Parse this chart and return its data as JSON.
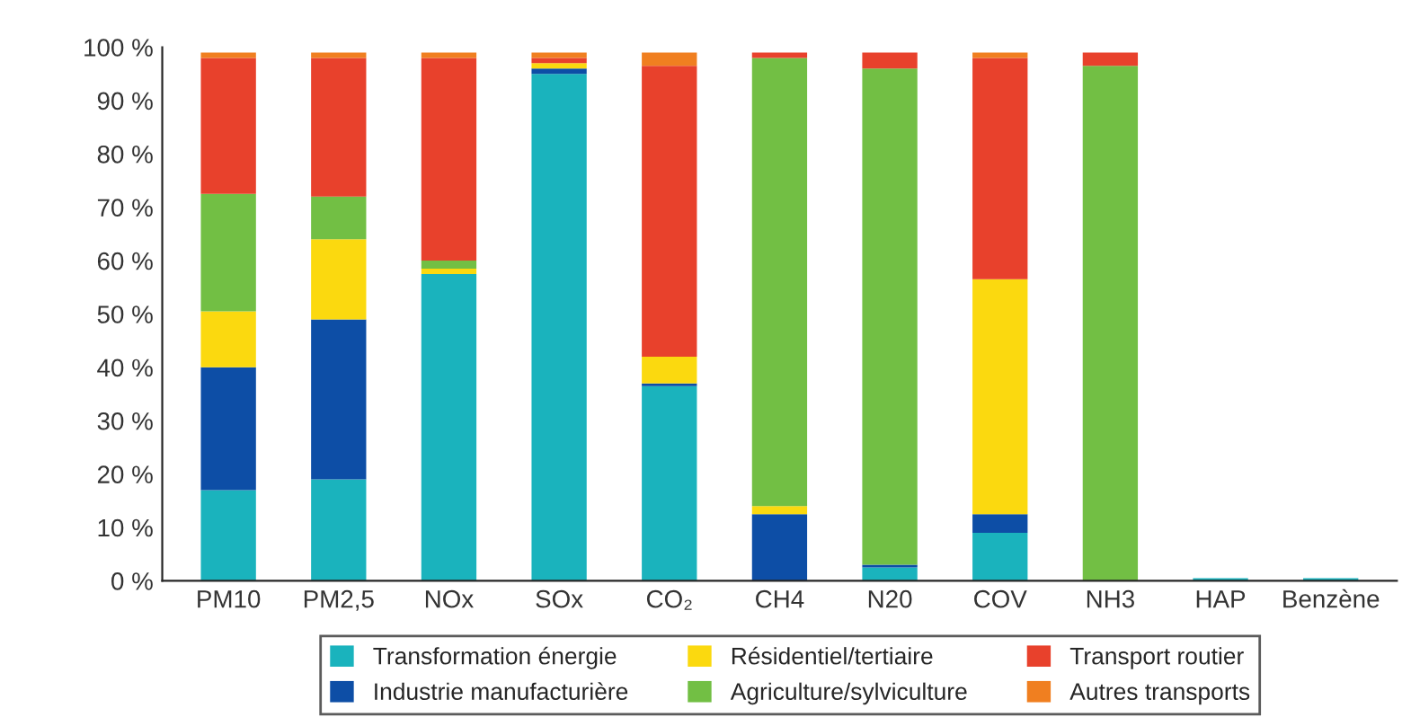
{
  "chart_data": {
    "type": "bar",
    "stacked": true,
    "categories": [
      "PM10",
      "PM2,5",
      "NOx",
      "SOx",
      "CO₂",
      "CH4",
      "N20",
      "COV",
      "NH3",
      "HAP",
      "Benzène"
    ],
    "series": [
      {
        "name": "Transformation énergie",
        "color": "#1ab3bd",
        "values": [
          17,
          19,
          57.5,
          95,
          36.5,
          0,
          2.5,
          9,
          0,
          0.5,
          0.5
        ]
      },
      {
        "name": "Industrie manufacturière",
        "color": "#0d4ea6",
        "values": [
          23,
          30,
          0,
          1,
          0.5,
          12.5,
          0.5,
          3.5,
          0,
          0,
          0
        ]
      },
      {
        "name": "Résidentiel/tertiaire",
        "color": "#fbd90f",
        "values": [
          10.5,
          15,
          1,
          1,
          5,
          1.5,
          0,
          44,
          0,
          0,
          0
        ]
      },
      {
        "name": "Agriculture/sylviculture",
        "color": "#72bf44",
        "values": [
          22,
          8,
          1.5,
          0,
          0,
          84,
          93,
          0,
          96.5,
          0,
          0
        ]
      },
      {
        "name": "Transport routier",
        "color": "#e8412c",
        "values": [
          25.5,
          26,
          38,
          1,
          54.5,
          1,
          3,
          41.5,
          2.5,
          0,
          0
        ]
      },
      {
        "name": "Autres transports",
        "color": "#f07f20",
        "values": [
          1,
          1,
          1,
          1,
          2.5,
          0,
          0,
          1,
          0,
          0,
          0
        ]
      }
    ],
    "ylim": [
      0,
      100
    ],
    "yticks": [
      {
        "value": 0,
        "label": "0 %"
      },
      {
        "value": 10,
        "label": "10 %"
      },
      {
        "value": 20,
        "label": "20 %"
      },
      {
        "value": 30,
        "label": "30 %"
      },
      {
        "value": 40,
        "label": "40 %"
      },
      {
        "value": 50,
        "label": "50 %"
      },
      {
        "value": 60,
        "label": "60 %"
      },
      {
        "value": 70,
        "label": "70 %"
      },
      {
        "value": 80,
        "label": "80 %"
      },
      {
        "value": 90,
        "label": "90 %"
      },
      {
        "value": 100,
        "label": "100 %"
      }
    ],
    "legend": "bottom",
    "grid": false
  }
}
